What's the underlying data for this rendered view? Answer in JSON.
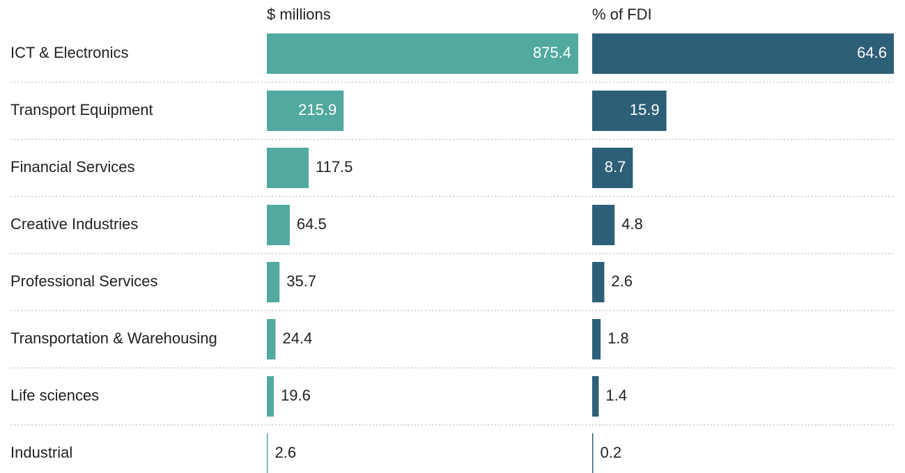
{
  "chart_data": {
    "type": "bar",
    "categories": [
      "ICT & Electronics",
      "Transport Equipment",
      "Financial Services",
      "Creative Industries",
      "Professional Services",
      "Transportation & Warehousing",
      "Life sciences",
      "Industrial"
    ],
    "series": [
      {
        "name": "$ millions",
        "color": "#52a99f",
        "values": [
          875.4,
          215.9,
          117.5,
          64.5,
          35.7,
          24.4,
          19.6,
          2.6
        ]
      },
      {
        "name": "% of FDI",
        "color": "#2e5f78",
        "values": [
          64.6,
          15.9,
          8.7,
          4.8,
          2.6,
          1.8,
          1.4,
          0.2
        ]
      }
    ]
  }
}
